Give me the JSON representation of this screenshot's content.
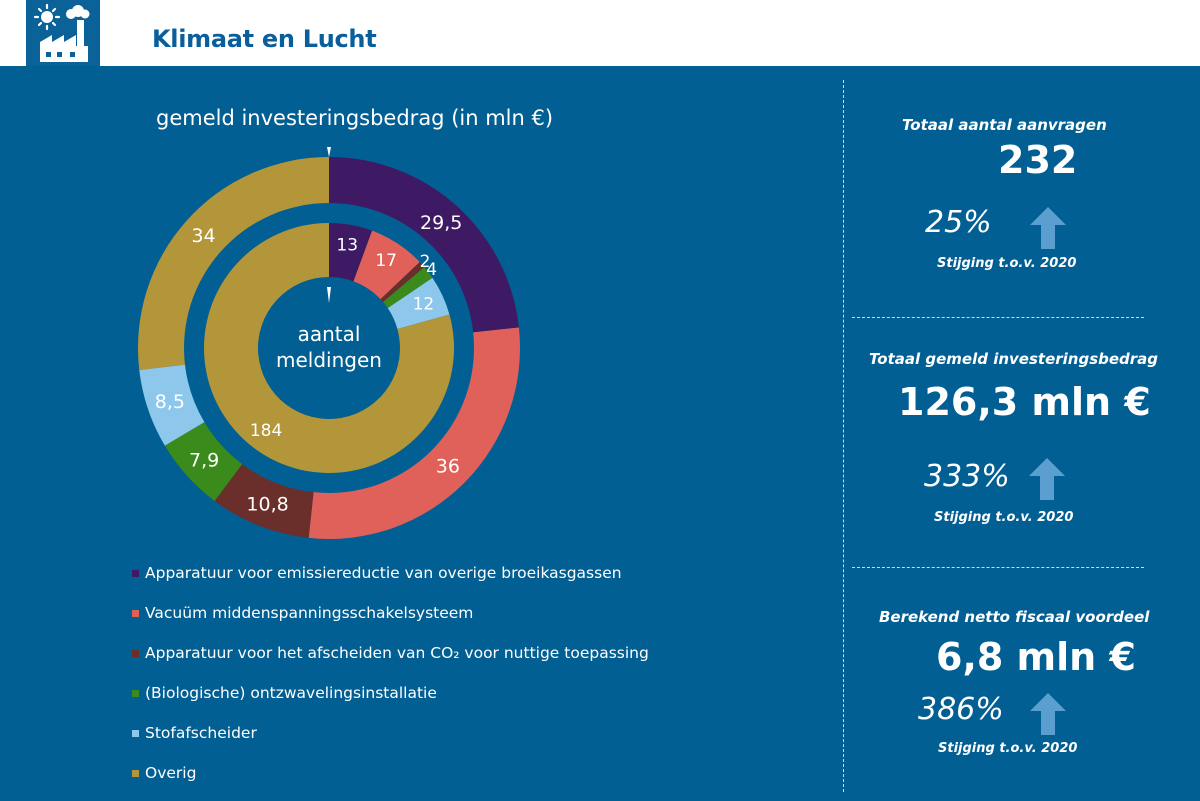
{
  "header": {
    "title": "Klimaat en Lucht",
    "icon": "factory-sun-icon"
  },
  "chart_data": {
    "type": "donut",
    "title": "gemeld investeringsbedrag (in mln €)",
    "center_label": [
      "aantal",
      "meldingen"
    ],
    "categories": [
      "Apparatuur voor emissiereductie van overige broeikasgassen",
      "Vacuüm middenspanningsschakelsysteem",
      "Apparatuur voor het afscheiden van CO2 voor nuttige toepassing",
      "(Biologische) ontzwavelingsinstallatie",
      "Stofafscheider",
      "Overig"
    ],
    "colors": [
      "#3d1a63",
      "#e0605a",
      "#6a2f2a",
      "#3a8a1c",
      "#8dc8ec",
      "#b4963a"
    ],
    "series": [
      {
        "name": "gemeld investeringsbedrag (in mln €)",
        "ring": "outer",
        "values": [
          29.5,
          36,
          10.8,
          7.9,
          8.5,
          34
        ],
        "labels": [
          "29,5",
          "36",
          "10,8",
          "7,9",
          "8,5",
          "34"
        ]
      },
      {
        "name": "aantal meldingen",
        "ring": "inner",
        "values": [
          13,
          17,
          2,
          4,
          12,
          184
        ],
        "labels": [
          "13",
          "17",
          "2",
          "4",
          "12",
          "184"
        ]
      }
    ]
  },
  "legend": {
    "items": [
      "Apparatuur voor emissiereductie van overige broeikasgassen",
      "Vacuüm middenspanningsschakelsysteem",
      "Apparatuur voor het afscheiden van CO₂ voor nuttige toepassing",
      "(Biologische) ontzwavelingsinstallatie",
      "Stofafscheider",
      "Overig"
    ]
  },
  "stats": [
    {
      "label": "Totaal aantal aanvragen",
      "value": "232",
      "pct": "25%",
      "sub": "Stijging t.o.v. 2020"
    },
    {
      "label": "Totaal gemeld investeringsbedrag",
      "value": "126,3 mln €",
      "pct": "333%",
      "sub": "Stijging t.o.v. 2020"
    },
    {
      "label": "Berekend netto fiscaal voordeel",
      "value": "6,8 mln €",
      "pct": "386%",
      "sub": "Stijging t.o.v. 2020"
    }
  ],
  "arrow_color": "#5b9fd0"
}
